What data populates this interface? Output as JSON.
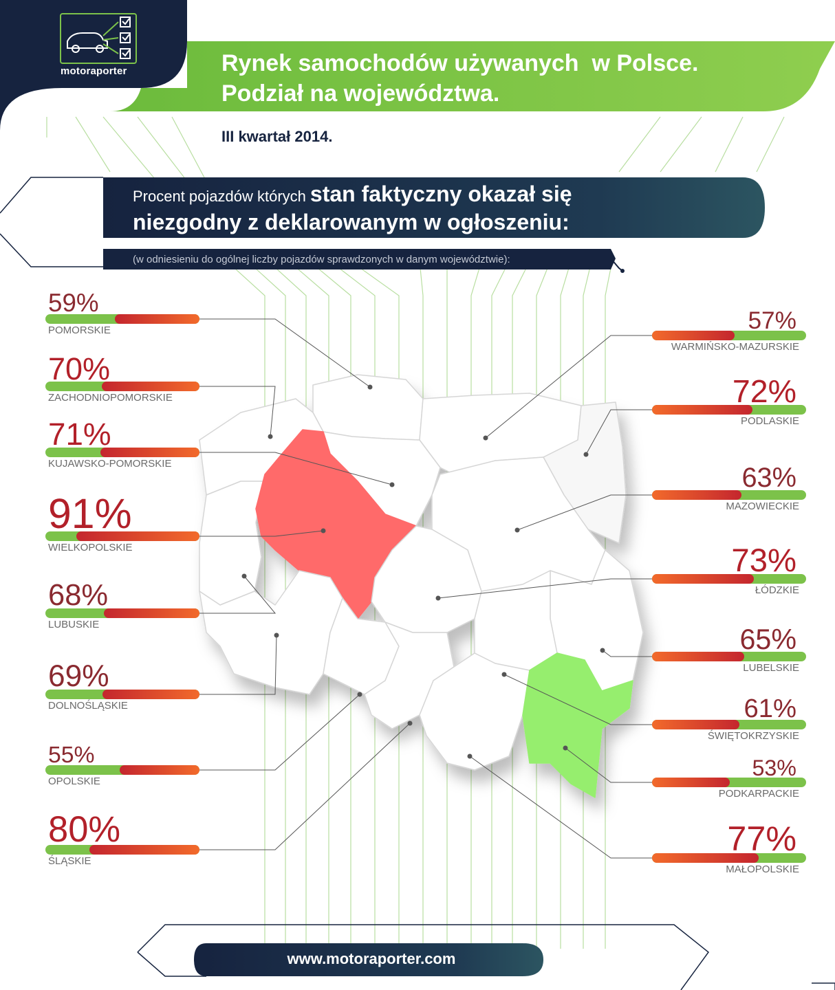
{
  "brand": {
    "name": "motoraporter",
    "logo": "car-checklist-icon"
  },
  "header": {
    "title_line1": "Rynek samochodów używanych  w Polsce.",
    "title_line2": "Podział na województwa.",
    "period": "III kwartał 2014."
  },
  "question": {
    "line1_lead": "Procent pojazdów których",
    "line1_bold": "stan faktyczny okazał się",
    "line2": "niezgodny z deklarowanym w ogłoszeniu:",
    "note": "(w odniesieniu do ogólnej liczby pojazdów sprawdzonych w danym województwie):"
  },
  "footer": {
    "url": "www.motoraporter.com"
  },
  "colors": {
    "navy": "#16233f",
    "green": "#7cc24a",
    "red": "#c4262e",
    "orange": "#f0652a",
    "highlight_max": "#ff6b6b",
    "highlight_min": "#96ee6e"
  },
  "chart_data": {
    "type": "bar",
    "unit": "%",
    "scale_max": 100,
    "highlight_max": "WIELKOPOLSKIE",
    "highlight_min": "PODKARPACKIE",
    "left_column": [
      {
        "label": "POMORSKIE",
        "value": 59,
        "display": "59%"
      },
      {
        "label": "ZACHODNIOPOMORSKIE",
        "value": 70,
        "display": "70%"
      },
      {
        "label": "KUJAWSKO-POMORSKIE",
        "value": 71,
        "display": "71%"
      },
      {
        "label": "WIELKOPOLSKIE",
        "value": 91,
        "display": "91%"
      },
      {
        "label": "LUBUSKIE",
        "value": 68,
        "display": "68%"
      },
      {
        "label": "DOLNOŚLĄSKIE",
        "value": 69,
        "display": "69%"
      },
      {
        "label": "OPOLSKIE",
        "value": 55,
        "display": "55%"
      },
      {
        "label": "ŚLĄSKIE",
        "value": 80,
        "display": "80%"
      }
    ],
    "right_column": [
      {
        "label": "WARMIŃSKO-MAZURSKIE",
        "value": 57,
        "display": "57%"
      },
      {
        "label": "PODLASKIE",
        "value": 72,
        "display": "72%"
      },
      {
        "label": "MAZOWIECKIE",
        "value": 63,
        "display": "63%"
      },
      {
        "label": "ŁÓDZKIE",
        "value": 73,
        "display": "73%"
      },
      {
        "label": "LUBELSKIE",
        "value": 65,
        "display": "65%"
      },
      {
        "label": "ŚWIĘTOKRZYSKIE",
        "value": 61,
        "display": "61%"
      },
      {
        "label": "PODKARPACKIE",
        "value": 53,
        "display": "53%"
      },
      {
        "label": "MAŁOPOLSKIE",
        "value": 77,
        "display": "77%"
      }
    ]
  }
}
